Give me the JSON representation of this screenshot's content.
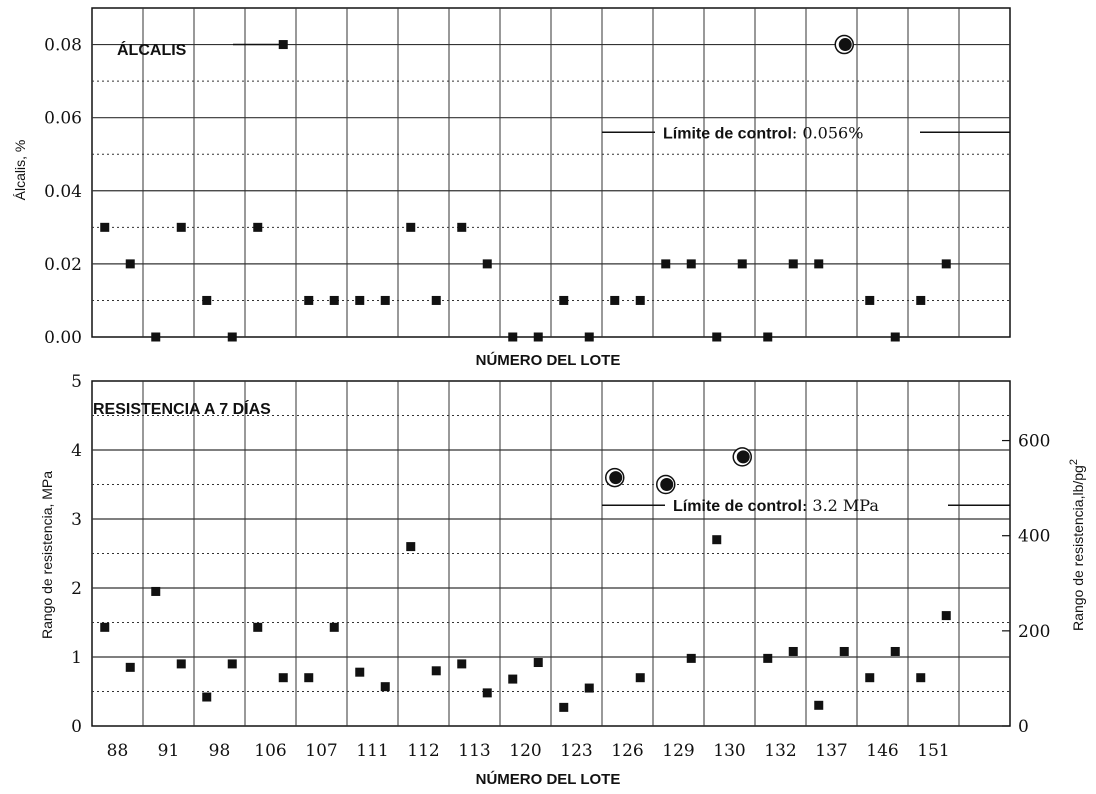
{
  "chart_data": [
    {
      "type": "scatter",
      "title": "ÁLCALIS",
      "xlabel": "NÚMERO DEL LOTE",
      "ylabel": "Álcalis, %",
      "ylim": [
        0,
        0.09
      ],
      "y_ticks": [
        "0.00",
        "0.02",
        "0.04",
        "0.06",
        "0.08"
      ],
      "grid": true,
      "control_limit": {
        "label": "Límite de control",
        "value_text": ": 0.056%",
        "value": 0.056
      },
      "points": [
        {
          "i": 0,
          "y": 0.03
        },
        {
          "i": 1,
          "y": 0.02
        },
        {
          "i": 2,
          "y": 0.0
        },
        {
          "i": 3,
          "y": 0.03
        },
        {
          "i": 4,
          "y": 0.01
        },
        {
          "i": 5,
          "y": 0.0
        },
        {
          "i": 6,
          "y": 0.03
        },
        {
          "i": 7,
          "y": 0.08
        },
        {
          "i": 8,
          "y": 0.01
        },
        {
          "i": 9,
          "y": 0.01
        },
        {
          "i": 10,
          "y": 0.01
        },
        {
          "i": 11,
          "y": 0.01
        },
        {
          "i": 12,
          "y": 0.03
        },
        {
          "i": 13,
          "y": 0.01
        },
        {
          "i": 14,
          "y": 0.03
        },
        {
          "i": 15,
          "y": 0.02
        },
        {
          "i": 16,
          "y": 0.0
        },
        {
          "i": 17,
          "y": 0.0
        },
        {
          "i": 18,
          "y": 0.01
        },
        {
          "i": 19,
          "y": 0.0
        },
        {
          "i": 20,
          "y": 0.01
        },
        {
          "i": 21,
          "y": 0.01
        },
        {
          "i": 22,
          "y": 0.02
        },
        {
          "i": 23,
          "y": 0.02
        },
        {
          "i": 24,
          "y": 0.0
        },
        {
          "i": 25,
          "y": 0.02
        },
        {
          "i": 26,
          "y": 0.0
        },
        {
          "i": 27,
          "y": 0.02
        },
        {
          "i": 28,
          "y": 0.02
        },
        {
          "i": 29,
          "y": 0.08,
          "outlier": true
        },
        {
          "i": 30,
          "y": 0.01
        },
        {
          "i": 31,
          "y": 0.0
        },
        {
          "i": 32,
          "y": 0.01
        },
        {
          "i": 33,
          "y": 0.02
        }
      ]
    },
    {
      "type": "scatter",
      "title": "RESISTENCIA A 7 DÍAS",
      "xlabel": "NÚMERO DEL LOTE",
      "ylabel": "Rango de resistencia, MPa",
      "ylabel_right": "Rango de resistencia,lb/pg",
      "ylabel_right_sup": "2",
      "ylim": [
        0,
        5
      ],
      "y_ticks": [
        "0",
        "1",
        "2",
        "3",
        "4",
        "5"
      ],
      "y2_ticks": [
        "0",
        "200",
        "400",
        "600"
      ],
      "y2_values": [
        0,
        200,
        400,
        600
      ],
      "x_tick_labels": [
        "88",
        "91",
        "98",
        "106",
        "107",
        "111",
        "112",
        "113",
        "120",
        "123",
        "126",
        "129",
        "130",
        "132",
        "137",
        "146",
        "151"
      ],
      "grid": true,
      "control_limit": {
        "label": "Límite de control",
        "value_text": ": 3.2 MPa",
        "value": 3.2
      },
      "points": [
        {
          "i": 0,
          "y": 1.43
        },
        {
          "i": 1,
          "y": 0.85
        },
        {
          "i": 2,
          "y": 1.95
        },
        {
          "i": 3,
          "y": 0.9
        },
        {
          "i": 4,
          "y": 0.42
        },
        {
          "i": 5,
          "y": 0.9
        },
        {
          "i": 6,
          "y": 1.43
        },
        {
          "i": 7,
          "y": 0.7
        },
        {
          "i": 8,
          "y": 0.7
        },
        {
          "i": 9,
          "y": 1.43
        },
        {
          "i": 10,
          "y": 0.78
        },
        {
          "i": 11,
          "y": 0.57
        },
        {
          "i": 12,
          "y": 2.6
        },
        {
          "i": 13,
          "y": 0.8
        },
        {
          "i": 14,
          "y": 0.9
        },
        {
          "i": 15,
          "y": 0.48
        },
        {
          "i": 16,
          "y": 0.68
        },
        {
          "i": 17,
          "y": 0.92
        },
        {
          "i": 18,
          "y": 0.27
        },
        {
          "i": 19,
          "y": 0.55
        },
        {
          "i": 20,
          "y": 3.6,
          "outlier": true
        },
        {
          "i": 21,
          "y": 0.7
        },
        {
          "i": 22,
          "y": 3.5,
          "outlier": true
        },
        {
          "i": 23,
          "y": 0.98
        },
        {
          "i": 24,
          "y": 2.7
        },
        {
          "i": 25,
          "y": 3.9,
          "outlier": true
        },
        {
          "i": 26,
          "y": 0.98
        },
        {
          "i": 27,
          "y": 1.08
        },
        {
          "i": 28,
          "y": 0.3
        },
        {
          "i": 29,
          "y": 1.08
        },
        {
          "i": 30,
          "y": 0.7
        },
        {
          "i": 31,
          "y": 1.08
        },
        {
          "i": 32,
          "y": 0.7
        },
        {
          "i": 33,
          "y": 1.6
        }
      ]
    }
  ]
}
